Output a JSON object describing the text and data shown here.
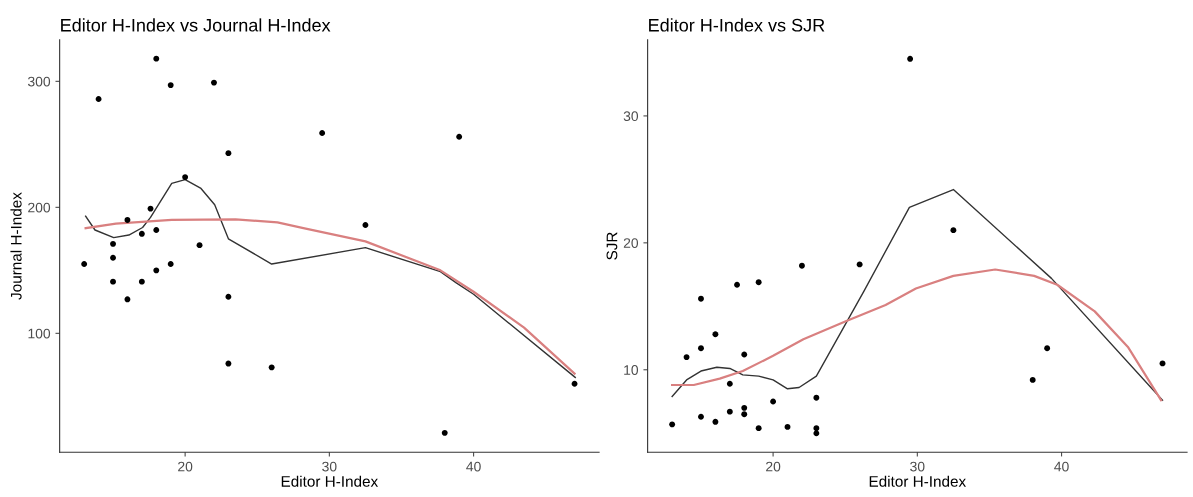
{
  "chart_data": [
    {
      "type": "scatter",
      "title": "Editor H-Index vs Journal H-Index",
      "xlabel": "Editor H-Index",
      "ylabel": "Journal H-Index",
      "xlim": [
        11.3,
        48.7
      ],
      "ylim": [
        5.6,
        333
      ],
      "xticks": [
        20,
        30,
        40
      ],
      "yticks": [
        100,
        200,
        300
      ],
      "grid": false,
      "series": [
        {
          "color": "#000000",
          "marker": "circle",
          "x": [
            13,
            14,
            15,
            15,
            15,
            16,
            16,
            17,
            17,
            17.6,
            18,
            18,
            18,
            19,
            19,
            20,
            21,
            22,
            23,
            23,
            23,
            26,
            29.5,
            32.5,
            39,
            38,
            47
          ],
          "values": [
            155,
            286,
            171,
            160,
            141,
            190,
            127,
            179,
            141,
            199,
            318,
            182,
            150,
            297,
            155,
            224,
            170,
            299,
            243,
            129,
            76,
            73,
            259,
            186,
            256,
            21,
            60
          ]
        },
        {
          "type": "line",
          "color": "#333333",
          "marker": "none",
          "x": [
            13.1,
            13.75,
            15.05,
            16.1,
            17.05,
            17.6,
            19.07,
            20,
            21.1,
            22.05,
            23,
            26,
            32.5,
            37.7,
            38.8,
            40,
            47.05
          ],
          "values": [
            193,
            182,
            176,
            178,
            184,
            192,
            219,
            222,
            215,
            202,
            175,
            155,
            168,
            149,
            140,
            131,
            65
          ]
        },
        {
          "type": "line",
          "color": "#d98080",
          "marker": "none",
          "x": [
            13.1,
            15.2,
            19.07,
            23.5,
            26.4,
            28.2,
            32.5,
            37.7,
            40,
            43.5,
            47
          ],
          "values": [
            183.5,
            187,
            190,
            190.5,
            188,
            183.5,
            173,
            150,
            133,
            104.5,
            68
          ]
        }
      ]
    },
    {
      "type": "scatter",
      "title": "Editor H-Index vs SJR",
      "xlabel": "Editor H-Index",
      "ylabel": "SJR",
      "xlim": [
        11.3,
        48.7
      ],
      "ylim": [
        3.5,
        36
      ],
      "xticks": [
        20,
        30,
        40
      ],
      "yticks": [
        10,
        20,
        30
      ],
      "grid": false,
      "series": [
        {
          "color": "#000000",
          "marker": "circle",
          "x": [
            13,
            14,
            15,
            15,
            15,
            16,
            16,
            17,
            17,
            17.5,
            18,
            18,
            18,
            19,
            19,
            20,
            21,
            22,
            23,
            23,
            23,
            26,
            29.5,
            32.5,
            39,
            38,
            47
          ],
          "values": [
            5.7,
            11.0,
            15.6,
            11.7,
            6.3,
            12.8,
            5.9,
            8.9,
            6.7,
            16.7,
            11.2,
            7.0,
            6.5,
            16.9,
            5.4,
            7.5,
            5.5,
            18.2,
            7.8,
            5.4,
            5.0,
            18.3,
            34.5,
            21.0,
            11.7,
            9.2,
            10.5
          ]
        },
        {
          "type": "line",
          "color": "#333333",
          "marker": "none",
          "x": [
            13,
            14,
            15,
            16.1,
            17,
            17.9,
            19,
            20,
            21,
            21.8,
            23,
            26.3,
            29.45,
            32.5,
            39.3,
            47
          ],
          "values": [
            7.9,
            9.2,
            9.9,
            10.2,
            10.1,
            9.6,
            9.5,
            9.2,
            8.5,
            8.6,
            9.5,
            16.2,
            22.8,
            24.2,
            17.2,
            7.6
          ]
        },
        {
          "type": "line",
          "color": "#d98080",
          "marker": "none",
          "x": [
            13,
            14.5,
            16.3,
            17.9,
            20,
            22.1,
            25,
            27.8,
            29.9,
            32.5,
            35.4,
            38.1,
            39.7,
            42.3,
            44.6,
            46.9
          ],
          "values": [
            8.8,
            8.8,
            9.3,
            9.9,
            11.1,
            12.4,
            13.8,
            15.1,
            16.4,
            17.4,
            17.9,
            17.4,
            16.7,
            14.6,
            11.8,
            7.6
          ]
        }
      ]
    }
  ]
}
